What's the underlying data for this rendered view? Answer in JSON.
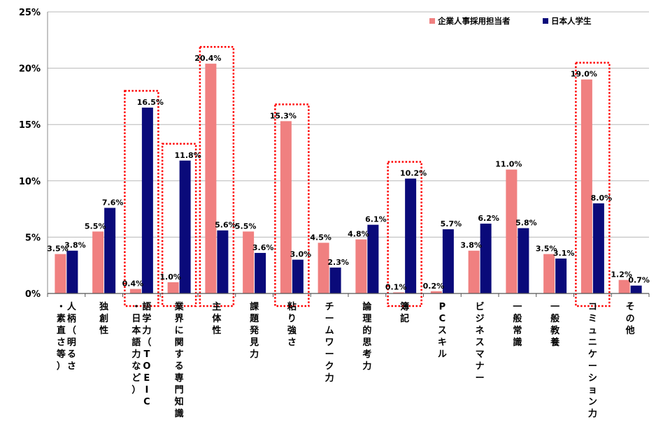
{
  "chart_data": {
    "type": "bar",
    "categories": [
      "人柄（明るさ・素直さ等）",
      "独創性",
      "語学力（TOEIC・日本語力など）",
      "業界に関する専門知識",
      "主体性",
      "課題発見力",
      "粘り強さ",
      "チームワーク力",
      "論理的思考力",
      "簿記",
      "PCスキル",
      "ビジネスマナー",
      "一般常識",
      "一般教養",
      "コミュニケーション力",
      "その他"
    ],
    "series": [
      {
        "name": "企業人事採用担当者",
        "color": "#F08080",
        "values": [
          3.5,
          5.5,
          0.4,
          1.0,
          20.4,
          5.5,
          15.3,
          4.5,
          4.8,
          0.1,
          0.2,
          3.8,
          11.0,
          3.5,
          19.0,
          1.2
        ],
        "labels": [
          "3.5%",
          "5.5%",
          "0.4%",
          "1.0%",
          "20.4%",
          "5.5%",
          "15.3%",
          "4.5%",
          "4.8%",
          "0.1%",
          "0.2%",
          "3.8%",
          "11.0%",
          "3.5%",
          "19.0%",
          "1.2%"
        ]
      },
      {
        "name": "日本人学生",
        "color": "#0A0A7A",
        "values": [
          3.8,
          7.6,
          16.5,
          11.8,
          5.6,
          3.6,
          3.0,
          2.3,
          6.1,
          10.2,
          5.7,
          6.2,
          5.8,
          3.1,
          8.0,
          0.7
        ],
        "labels": [
          "3.8%",
          "7.6%",
          "16.5%",
          "11.8%",
          "5.6%",
          "3.6%",
          "3.0%",
          "2.3%",
          "6.1%",
          "10.2%",
          "5.7%",
          "6.2%",
          "5.8%",
          "3.1%",
          "8.0%",
          "0.7%"
        ]
      }
    ],
    "ylim": [
      0,
      25
    ],
    "yticks": [
      0,
      5,
      10,
      15,
      20,
      25
    ],
    "ytick_labels": [
      "0%",
      "5%",
      "10%",
      "15%",
      "20%",
      "25%"
    ],
    "grid": true,
    "legend_position": "top-right",
    "highlighted_categories": [
      2,
      3,
      4,
      6,
      9,
      14
    ],
    "highlight_color": "#FF0000"
  }
}
